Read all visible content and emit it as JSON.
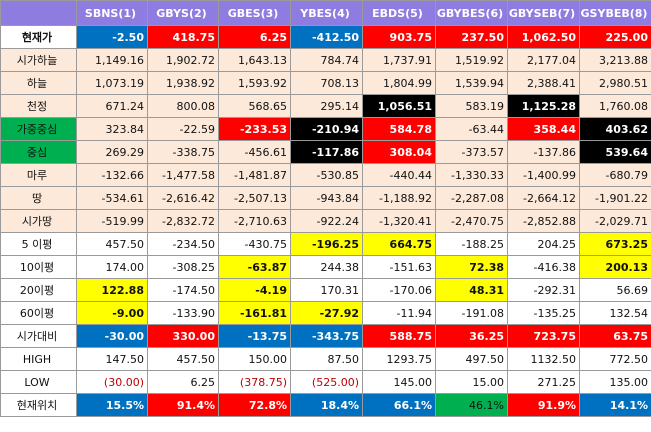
{
  "columns": [
    "SBNS(1)",
    "GBYS(2)",
    "GBES(3)",
    "YBES(4)",
    "EBDS(5)",
    "GBYBES(6)",
    "GBYSEB(7)",
    "GSYBEB(8)"
  ],
  "rows": [
    {
      "label": "현재가",
      "label_fill": "white",
      "label_bold": true,
      "cells": [
        {
          "v": "-2.50",
          "f": "blue"
        },
        {
          "v": "418.75",
          "f": "red"
        },
        {
          "v": "6.25",
          "f": "red"
        },
        {
          "v": "-412.50",
          "f": "blue"
        },
        {
          "v": "903.75",
          "f": "red"
        },
        {
          "v": "237.50",
          "f": "red"
        },
        {
          "v": "1,062.50",
          "f": "red"
        },
        {
          "v": "225.00",
          "f": "red"
        }
      ]
    },
    {
      "label": "시가하늘",
      "label_fill": "peach",
      "cells": [
        {
          "v": "1,149.16",
          "f": "peach"
        },
        {
          "v": "1,902.72",
          "f": "peach"
        },
        {
          "v": "1,643.13",
          "f": "peach"
        },
        {
          "v": "784.74",
          "f": "peach"
        },
        {
          "v": "1,737.91",
          "f": "peach"
        },
        {
          "v": "1,519.92",
          "f": "peach"
        },
        {
          "v": "2,177.04",
          "f": "peach"
        },
        {
          "v": "3,213.88",
          "f": "peach"
        }
      ]
    },
    {
      "label": "하늘",
      "label_fill": "peach",
      "cells": [
        {
          "v": "1,073.19",
          "f": "peach"
        },
        {
          "v": "1,938.92",
          "f": "peach"
        },
        {
          "v": "1,593.92",
          "f": "peach"
        },
        {
          "v": "708.13",
          "f": "peach"
        },
        {
          "v": "1,804.99",
          "f": "peach"
        },
        {
          "v": "1,539.94",
          "f": "peach"
        },
        {
          "v": "2,388.41",
          "f": "peach"
        },
        {
          "v": "2,980.51",
          "f": "peach"
        }
      ]
    },
    {
      "label": "천정",
      "label_fill": "peach",
      "cells": [
        {
          "v": "671.24",
          "f": "peach"
        },
        {
          "v": "800.08",
          "f": "peach"
        },
        {
          "v": "568.65",
          "f": "peach"
        },
        {
          "v": "295.14",
          "f": "peach"
        },
        {
          "v": "1,056.51",
          "f": "black"
        },
        {
          "v": "583.19",
          "f": "peach"
        },
        {
          "v": "1,125.28",
          "f": "black"
        },
        {
          "v": "1,760.08",
          "f": "peach"
        }
      ]
    },
    {
      "label": "가중중심",
      "label_fill": "green",
      "cells": [
        {
          "v": "323.84",
          "f": "peach"
        },
        {
          "v": "-22.59",
          "f": "peach"
        },
        {
          "v": "-233.53",
          "f": "red"
        },
        {
          "v": "-210.94",
          "f": "black"
        },
        {
          "v": "584.78",
          "f": "red"
        },
        {
          "v": "-63.44",
          "f": "peach"
        },
        {
          "v": "358.44",
          "f": "red"
        },
        {
          "v": "403.62",
          "f": "black"
        }
      ]
    },
    {
      "label": "중심",
      "label_fill": "green",
      "cells": [
        {
          "v": "269.29",
          "f": "peach"
        },
        {
          "v": "-338.75",
          "f": "peach"
        },
        {
          "v": "-456.61",
          "f": "peach"
        },
        {
          "v": "-117.86",
          "f": "black"
        },
        {
          "v": "308.04",
          "f": "red"
        },
        {
          "v": "-373.57",
          "f": "peach"
        },
        {
          "v": "-137.86",
          "f": "peach"
        },
        {
          "v": "539.64",
          "f": "black"
        }
      ]
    },
    {
      "label": "마루",
      "label_fill": "peach",
      "cells": [
        {
          "v": "-132.66",
          "f": "peach"
        },
        {
          "v": "-1,477.58",
          "f": "peach"
        },
        {
          "v": "-1,481.87",
          "f": "peach"
        },
        {
          "v": "-530.85",
          "f": "peach"
        },
        {
          "v": "-440.44",
          "f": "peach"
        },
        {
          "v": "-1,330.33",
          "f": "peach"
        },
        {
          "v": "-1,400.99",
          "f": "peach"
        },
        {
          "v": "-680.79",
          "f": "peach"
        }
      ]
    },
    {
      "label": "땅",
      "label_fill": "peach",
      "cells": [
        {
          "v": "-534.61",
          "f": "peach"
        },
        {
          "v": "-2,616.42",
          "f": "peach"
        },
        {
          "v": "-2,507.13",
          "f": "peach"
        },
        {
          "v": "-943.84",
          "f": "peach"
        },
        {
          "v": "-1,188.92",
          "f": "peach"
        },
        {
          "v": "-2,287.08",
          "f": "peach"
        },
        {
          "v": "-2,664.12",
          "f": "peach"
        },
        {
          "v": "-1,901.22",
          "f": "peach"
        }
      ]
    },
    {
      "label": "시가땅",
      "label_fill": "peach",
      "cells": [
        {
          "v": "-519.99",
          "f": "peach"
        },
        {
          "v": "-2,832.72",
          "f": "peach"
        },
        {
          "v": "-2,710.63",
          "f": "peach"
        },
        {
          "v": "-922.24",
          "f": "peach"
        },
        {
          "v": "-1,320.41",
          "f": "peach"
        },
        {
          "v": "-2,470.75",
          "f": "peach"
        },
        {
          "v": "-2,852.88",
          "f": "peach"
        },
        {
          "v": "-2,029.71",
          "f": "peach"
        }
      ]
    },
    {
      "label": "5 이평",
      "label_fill": "white",
      "cells": [
        {
          "v": "457.50",
          "f": "white"
        },
        {
          "v": "-234.50",
          "f": "white"
        },
        {
          "v": "-430.75",
          "f": "white"
        },
        {
          "v": "-196.25",
          "f": "yellow"
        },
        {
          "v": "664.75",
          "f": "yellow"
        },
        {
          "v": "-188.25",
          "f": "white"
        },
        {
          "v": "204.25",
          "f": "white"
        },
        {
          "v": "673.25",
          "f": "yellow"
        }
      ]
    },
    {
      "label": "10이평",
      "label_fill": "white",
      "cells": [
        {
          "v": "174.00",
          "f": "white"
        },
        {
          "v": "-308.25",
          "f": "white"
        },
        {
          "v": "-63.87",
          "f": "yellow"
        },
        {
          "v": "244.38",
          "f": "white"
        },
        {
          "v": "-151.63",
          "f": "white"
        },
        {
          "v": "72.38",
          "f": "yellow"
        },
        {
          "v": "-416.38",
          "f": "white"
        },
        {
          "v": "200.13",
          "f": "yellow"
        }
      ]
    },
    {
      "label": "20이평",
      "label_fill": "white",
      "cells": [
        {
          "v": "122.88",
          "f": "yellow"
        },
        {
          "v": "-174.50",
          "f": "white"
        },
        {
          "v": "-4.19",
          "f": "yellow"
        },
        {
          "v": "170.31",
          "f": "white"
        },
        {
          "v": "-170.06",
          "f": "white"
        },
        {
          "v": "48.31",
          "f": "yellow"
        },
        {
          "v": "-292.31",
          "f": "white"
        },
        {
          "v": "56.69",
          "f": "white"
        }
      ]
    },
    {
      "label": "60이평",
      "label_fill": "white",
      "cells": [
        {
          "v": "-9.00",
          "f": "yellow"
        },
        {
          "v": "-133.90",
          "f": "white"
        },
        {
          "v": "-161.81",
          "f": "yellow"
        },
        {
          "v": "-27.92",
          "f": "yellow"
        },
        {
          "v": "-11.94",
          "f": "white"
        },
        {
          "v": "-191.08",
          "f": "white"
        },
        {
          "v": "-135.25",
          "f": "white"
        },
        {
          "v": "132.54",
          "f": "white"
        }
      ]
    },
    {
      "label": "시가대비",
      "label_fill": "white",
      "cells": [
        {
          "v": "-30.00",
          "f": "blue"
        },
        {
          "v": "330.00",
          "f": "red"
        },
        {
          "v": "-13.75",
          "f": "blue"
        },
        {
          "v": "-343.75",
          "f": "blue"
        },
        {
          "v": "588.75",
          "f": "red"
        },
        {
          "v": "36.25",
          "f": "red"
        },
        {
          "v": "723.75",
          "f": "red"
        },
        {
          "v": "63.75",
          "f": "red"
        }
      ]
    },
    {
      "label": "HIGH",
      "label_fill": "white",
      "cells": [
        {
          "v": "147.50",
          "f": "white"
        },
        {
          "v": "457.50",
          "f": "white"
        },
        {
          "v": "150.00",
          "f": "white"
        },
        {
          "v": "87.50",
          "f": "white"
        },
        {
          "v": "1293.75",
          "f": "white"
        },
        {
          "v": "497.50",
          "f": "white"
        },
        {
          "v": "1132.50",
          "f": "white"
        },
        {
          "v": "772.50",
          "f": "white"
        }
      ]
    },
    {
      "label": "LOW",
      "label_fill": "white",
      "cells": [
        {
          "v": "(30.00)",
          "f": "white",
          "t": "red"
        },
        {
          "v": "6.25",
          "f": "white"
        },
        {
          "v": "(378.75)",
          "f": "white",
          "t": "red"
        },
        {
          "v": "(525.00)",
          "f": "white",
          "t": "red"
        },
        {
          "v": "145.00",
          "f": "white"
        },
        {
          "v": "15.00",
          "f": "white"
        },
        {
          "v": "271.25",
          "f": "white"
        },
        {
          "v": "135.00",
          "f": "white"
        }
      ]
    },
    {
      "label": "현재위치",
      "label_fill": "white",
      "cells": [
        {
          "v": "15.5%",
          "f": "blue"
        },
        {
          "v": "91.4%",
          "f": "red"
        },
        {
          "v": "72.8%",
          "f": "red"
        },
        {
          "v": "18.4%",
          "f": "blue"
        },
        {
          "v": "66.1%",
          "f": "blue"
        },
        {
          "v": "46.1%",
          "f": "green"
        },
        {
          "v": "91.9%",
          "f": "red"
        },
        {
          "v": "14.1%",
          "f": "blue"
        }
      ]
    }
  ],
  "fill_colors": {
    "peach": "#fde9d9",
    "blue": "#0070c0",
    "red": "#ff0000",
    "black": "#000000",
    "yellow": "#ffff00",
    "green": "#00b050",
    "header": "#8e7ce0"
  }
}
